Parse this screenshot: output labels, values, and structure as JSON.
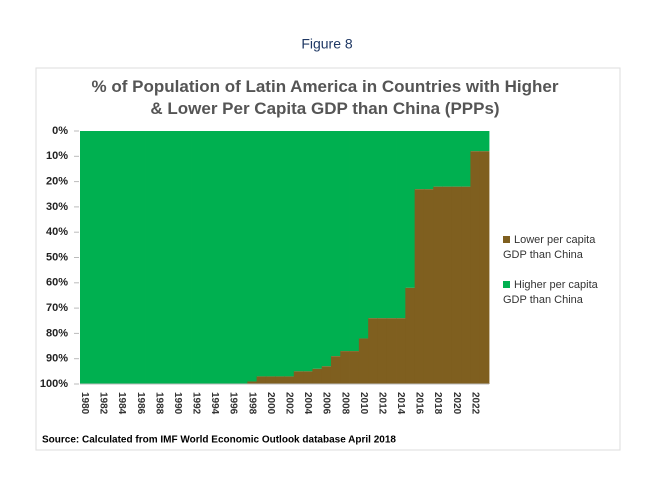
{
  "figure_label": "Figure 8",
  "chart_data": {
    "type": "stacked-step-area",
    "title": "% of Population of Latin America in Countries with Higher & Lower Per Capita GDP than China (PPPs)",
    "source": "Source: Calculated from IMF World Economic Outlook database April 2018",
    "categories": [
      "1980",
      null,
      "1982",
      null,
      "1984",
      null,
      "1986",
      null,
      "1988",
      null,
      "1990",
      null,
      "1992",
      null,
      "1994",
      null,
      "1996",
      null,
      "1998",
      null,
      "2000",
      null,
      "2002",
      null,
      "2004",
      null,
      "2006",
      null,
      "2008",
      null,
      "2010",
      null,
      "2012",
      null,
      "2014",
      null,
      "2016",
      null,
      "2018",
      null,
      "2020",
      null,
      "2022",
      null
    ],
    "series": [
      {
        "name": "Lower per capita GDP than China",
        "color": "#7f5f1f",
        "values": [
          0,
          0,
          0,
          0,
          0,
          0,
          0,
          0,
          0,
          0,
          0,
          0,
          0,
          0,
          0,
          0,
          0,
          0,
          1,
          3,
          3,
          3,
          3,
          5,
          5,
          6,
          7,
          11,
          13,
          13,
          18,
          26,
          26,
          26,
          26,
          38,
          77,
          77,
          78,
          78,
          78,
          78,
          92,
          92
        ]
      },
      {
        "name": "Higher per capita GDP than China",
        "color": "#00b050",
        "values": [
          100,
          100,
          100,
          100,
          100,
          100,
          100,
          100,
          100,
          100,
          100,
          100,
          100,
          100,
          100,
          100,
          100,
          100,
          99,
          97,
          97,
          97,
          97,
          95,
          95,
          94,
          93,
          89,
          87,
          87,
          82,
          74,
          74,
          74,
          74,
          62,
          23,
          23,
          22,
          22,
          22,
          22,
          8,
          8
        ]
      }
    ],
    "ylim": [
      0,
      100
    ],
    "inverted": true,
    "yticks": [
      {
        "value": 0,
        "label": "0%"
      },
      {
        "value": 10,
        "label": "10%"
      },
      {
        "value": 20,
        "label": "20%"
      },
      {
        "value": 30,
        "label": "30%"
      },
      {
        "value": 40,
        "label": "40%"
      },
      {
        "value": 50,
        "label": "50%"
      },
      {
        "value": 60,
        "label": "60%"
      },
      {
        "value": 70,
        "label": "70%"
      },
      {
        "value": 80,
        "label": "80%"
      },
      {
        "value": 90,
        "label": "90%"
      },
      {
        "value": 100,
        "label": "100%"
      }
    ],
    "legend": "right"
  }
}
